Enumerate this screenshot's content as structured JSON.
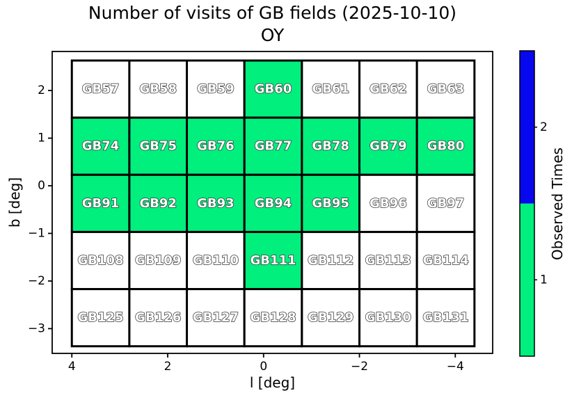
{
  "chart_data": {
    "type": "heatmap",
    "title": "Number of visits of GB fields (2025-10-10)",
    "subtitle": "OY",
    "xlabel": "l [deg]",
    "ylabel": "b [deg]",
    "xlim": [
      4.41,
      -4.78
    ],
    "ylim": [
      -3.52,
      2.82
    ],
    "x_ticks": {
      "values": [
        4,
        2,
        0,
        -2,
        -4
      ],
      "labels": [
        "4",
        "2",
        "0",
        "−2",
        "−4"
      ]
    },
    "y_ticks": {
      "values": [
        2,
        1,
        0,
        -1,
        -2,
        -3
      ],
      "labels": [
        "2",
        "1",
        "0",
        "−1",
        "−2",
        "−3"
      ]
    },
    "grid": {
      "l_left": 4.0,
      "b_top": 2.63,
      "cell_deg": 1.2,
      "cols": 7,
      "rows": 5
    },
    "fields": [
      {
        "labels": [
          "GB57",
          "GB58",
          "GB59",
          "GB60",
          "GB61",
          "GB62",
          "GB63"
        ],
        "visits": [
          0,
          0,
          0,
          1,
          0,
          0,
          0
        ]
      },
      {
        "labels": [
          "GB74",
          "GB75",
          "GB76",
          "GB77",
          "GB78",
          "GB79",
          "GB80"
        ],
        "visits": [
          1,
          1,
          1,
          1,
          1,
          1,
          1
        ]
      },
      {
        "labels": [
          "GB91",
          "GB92",
          "GB93",
          "GB94",
          "GB95",
          "GB96",
          "GB97"
        ],
        "visits": [
          1,
          1,
          1,
          1,
          1,
          0,
          0
        ]
      },
      {
        "labels": [
          "GB108",
          "GB109",
          "GB110",
          "GB111",
          "GB112",
          "GB113",
          "GB114"
        ],
        "visits": [
          0,
          0,
          0,
          1,
          0,
          0,
          0
        ]
      },
      {
        "labels": [
          "GB125",
          "GB126",
          "GB127",
          "GB128",
          "GB129",
          "GB130",
          "GB131"
        ],
        "visits": [
          0,
          0,
          0,
          0,
          0,
          0,
          0
        ]
      }
    ],
    "value_colors": {
      "0": "#ffffff",
      "1": "#00ef7d",
      "2": "#0707f0"
    },
    "cell_label_style": {
      "fill": "#ffffff",
      "outline": "#333333"
    },
    "colorbar": {
      "label": "Observed Times",
      "segments": [
        {
          "value": 1,
          "label": "1",
          "color": "#00ef7d"
        },
        {
          "value": 2,
          "label": "2",
          "color": "#0707f0"
        }
      ]
    },
    "legend_position": "right-colorbar",
    "grid_lines": "cell-borders-only"
  }
}
